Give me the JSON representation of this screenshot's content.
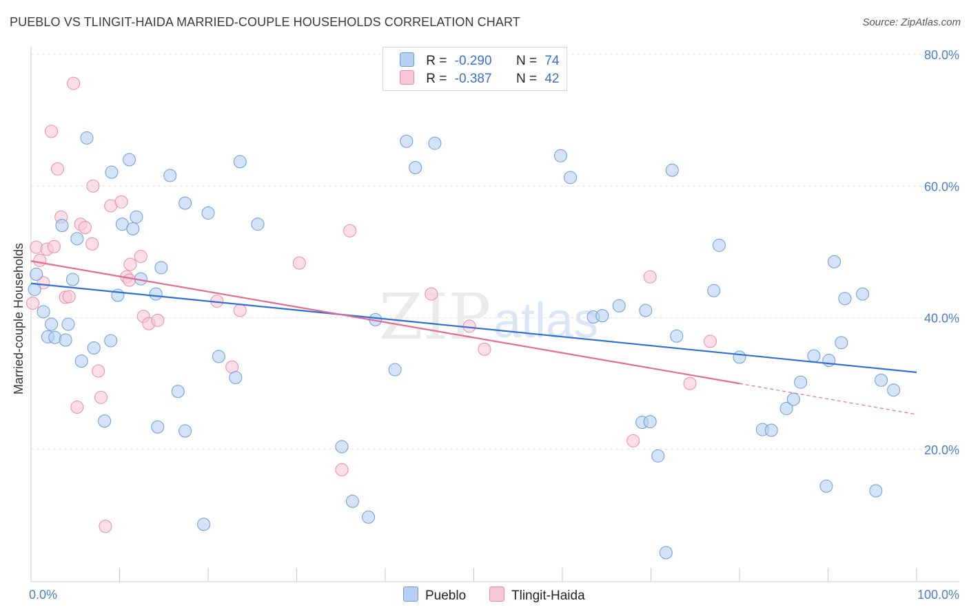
{
  "header": {
    "title": "PUEBLO VS TLINGIT-HAIDA MARRIED-COUPLE HOUSEHOLDS CORRELATION CHART",
    "source": "Source: ZipAtlas.com"
  },
  "legend": {
    "r_label": "R =",
    "n_label": "N =",
    "rows": [
      {
        "r": "-0.290",
        "n": "74"
      },
      {
        "r": "-0.387",
        "n": "42"
      }
    ]
  },
  "watermark": {
    "zip": "ZIP",
    "atlas": "atlas"
  },
  "colors": {
    "pueblo_fill": "#b7d0f2",
    "pueblo_stroke": "#6a9ad8",
    "pueblo_line": "#2d6fd2",
    "tlingit_fill": "#f8c8d6",
    "tlingit_stroke": "#e98aa8",
    "tlingit_line": "#e46a96",
    "tick_color": "#4a7ccf"
  },
  "chart_data": {
    "type": "scatter",
    "title": "PUEBLO VS TLINGIT-HAIDA MARRIED-COUPLE HOUSEHOLDS CORRELATION CHART",
    "xlabel": "",
    "ylabel": "Married-couple Households",
    "xlim": [
      0,
      100
    ],
    "ylim": [
      0,
      80
    ],
    "x_tick_labels": [
      "0.0%",
      "100.0%"
    ],
    "y_ticks": [
      20,
      40,
      60,
      80
    ],
    "y_tick_labels": [
      "20.0%",
      "40.0%",
      "60.0%",
      "80.0%"
    ],
    "bottom_legend": [
      "Pueblo",
      "Tlingit-Haida"
    ],
    "series": [
      {
        "name": "Pueblo",
        "r": -0.29,
        "n": 74,
        "trend": {
          "x0": 0,
          "y0": 45.2,
          "x1": 100,
          "y1": 31.7
        },
        "points": [
          [
            0.6,
            46.6
          ],
          [
            1.4,
            40.9
          ],
          [
            1.9,
            37.1
          ],
          [
            2.3,
            39.0
          ],
          [
            2.7,
            37.0
          ],
          [
            3.5,
            54.0
          ],
          [
            3.9,
            36.6
          ],
          [
            4.2,
            39.0
          ],
          [
            4.7,
            45.8
          ],
          [
            5.2,
            52.0
          ],
          [
            5.7,
            33.4
          ],
          [
            6.3,
            67.3
          ],
          [
            7.1,
            35.4
          ],
          [
            8.3,
            24.3
          ],
          [
            9.0,
            36.5
          ],
          [
            9.1,
            62.1
          ],
          [
            9.8,
            43.4
          ],
          [
            10.3,
            54.2
          ],
          [
            11.1,
            64.0
          ],
          [
            11.5,
            53.5
          ],
          [
            11.9,
            55.3
          ],
          [
            12.4,
            45.9
          ],
          [
            14.1,
            43.6
          ],
          [
            14.3,
            23.4
          ],
          [
            14.7,
            47.6
          ],
          [
            15.7,
            61.6
          ],
          [
            16.6,
            28.8
          ],
          [
            17.4,
            57.4
          ],
          [
            17.4,
            22.8
          ],
          [
            19.5,
            8.6
          ],
          [
            20.0,
            55.9
          ],
          [
            21.2,
            34.1
          ],
          [
            23.1,
            30.9
          ],
          [
            23.6,
            63.7
          ],
          [
            25.6,
            54.2
          ],
          [
            35.1,
            20.4
          ],
          [
            36.3,
            12.1
          ],
          [
            38.1,
            9.7
          ],
          [
            38.9,
            39.7
          ],
          [
            41.1,
            32.1
          ],
          [
            42.4,
            66.8
          ],
          [
            43.4,
            62.8
          ],
          [
            45.6,
            66.5
          ],
          [
            59.8,
            64.6
          ],
          [
            60.9,
            61.3
          ],
          [
            63.5,
            40.1
          ],
          [
            64.5,
            40.3
          ],
          [
            66.4,
            41.8
          ],
          [
            69.0,
            24.1
          ],
          [
            69.4,
            41.1
          ],
          [
            69.9,
            24.2
          ],
          [
            70.8,
            19.0
          ],
          [
            71.7,
            4.3
          ],
          [
            72.4,
            62.4
          ],
          [
            72.9,
            37.2
          ],
          [
            77.1,
            44.1
          ],
          [
            77.7,
            51.0
          ],
          [
            80.0,
            34.0
          ],
          [
            82.6,
            23.0
          ],
          [
            83.6,
            22.9
          ],
          [
            85.3,
            26.2
          ],
          [
            86.1,
            27.6
          ],
          [
            86.9,
            30.2
          ],
          [
            88.4,
            34.2
          ],
          [
            89.8,
            14.4
          ],
          [
            90.1,
            33.5
          ],
          [
            90.7,
            48.5
          ],
          [
            91.5,
            36.2
          ],
          [
            91.9,
            42.9
          ],
          [
            93.9,
            43.6
          ],
          [
            95.4,
            13.7
          ],
          [
            96.0,
            30.5
          ],
          [
            97.4,
            29.0
          ],
          [
            0.4,
            44.3
          ]
        ]
      },
      {
        "name": "Tlingit-Haida",
        "r": -0.387,
        "n": 42,
        "trend": {
          "x0": 0,
          "y0": 48.6,
          "x1": 80,
          "y1": 30.0,
          "dash_to": {
            "x": 100,
            "y": 25.3
          }
        },
        "points": [
          [
            0.2,
            42.2
          ],
          [
            0.6,
            50.7
          ],
          [
            1.0,
            48.7
          ],
          [
            1.4,
            45.3
          ],
          [
            1.8,
            50.4
          ],
          [
            2.3,
            68.3
          ],
          [
            2.6,
            50.8
          ],
          [
            3.0,
            62.6
          ],
          [
            3.4,
            55.3
          ],
          [
            3.9,
            43.1
          ],
          [
            4.3,
            43.2
          ],
          [
            4.8,
            75.6
          ],
          [
            5.2,
            26.4
          ],
          [
            5.6,
            54.2
          ],
          [
            6.1,
            53.7
          ],
          [
            6.9,
            51.2
          ],
          [
            7.0,
            60.0
          ],
          [
            7.6,
            31.9
          ],
          [
            7.9,
            27.9
          ],
          [
            8.4,
            8.3
          ],
          [
            9.0,
            57.0
          ],
          [
            10.2,
            57.6
          ],
          [
            10.8,
            46.2
          ],
          [
            11.1,
            45.7
          ],
          [
            11.2,
            48.1
          ],
          [
            12.4,
            49.3
          ],
          [
            12.7,
            40.2
          ],
          [
            13.3,
            39.1
          ],
          [
            14.3,
            39.6
          ],
          [
            21.0,
            42.5
          ],
          [
            22.7,
            32.5
          ],
          [
            23.6,
            41.1
          ],
          [
            30.3,
            48.3
          ],
          [
            35.1,
            16.9
          ],
          [
            36.0,
            53.2
          ],
          [
            45.2,
            43.6
          ],
          [
            49.5,
            38.7
          ],
          [
            51.2,
            35.2
          ],
          [
            68.0,
            21.3
          ],
          [
            69.9,
            46.2
          ],
          [
            74.4,
            30.0
          ],
          [
            76.7,
            36.4
          ]
        ]
      }
    ]
  }
}
